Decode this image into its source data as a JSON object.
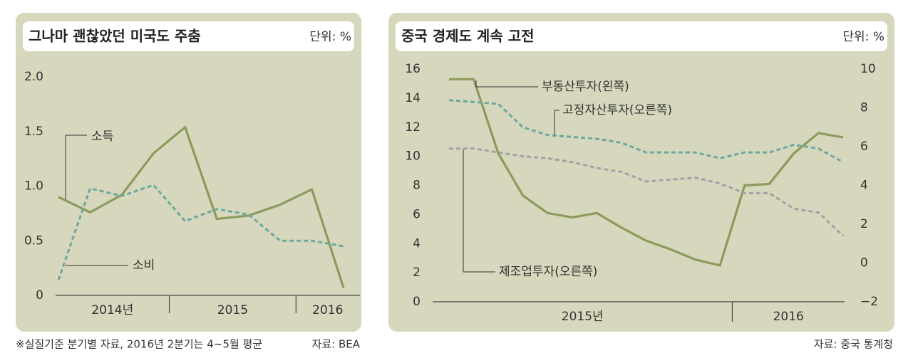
{
  "chart_data": [
    {
      "type": "line",
      "title": "그나마 괜찮았던 미국도 주춤",
      "unit": "단위: %",
      "categories": [
        null,
        null,
        null,
        null,
        null,
        null,
        null,
        null,
        null,
        null
      ],
      "x_groups": [
        {
          "label": "2014년",
          "count": 4
        },
        {
          "label": "2015",
          "count": 4
        },
        {
          "label": "2016",
          "count": 2
        }
      ],
      "ylim": [
        0,
        2
      ],
      "yticks": [
        0,
        0.5,
        {
          "value": 1,
          "label": "1.0"
        },
        1.5,
        {
          "value": 2,
          "label": "2.0"
        }
      ],
      "grid": false,
      "series": [
        {
          "name": "소득",
          "color": "#8c9a5c",
          "line_style": "solid",
          "values": [
            0.9,
            0.76,
            0.92,
            1.3,
            1.54,
            0.7,
            0.73,
            0.83,
            0.97,
            0.07
          ]
        },
        {
          "name": "소비",
          "color": "#6aa9a0",
          "line_style": "dashed",
          "values": [
            0.14,
            0.98,
            0.91,
            1.01,
            0.68,
            0.79,
            0.74,
            0.5,
            0.5,
            0.45
          ]
        }
      ],
      "note": "※실질기준 분기별 자료, 2016년 2분기는 4~5월 평균",
      "source": "자료: BEA"
    },
    {
      "type": "line",
      "title": "중국 경제도 계속 고전",
      "unit": "단위: %",
      "categories": [
        null,
        null,
        null,
        null,
        null,
        null,
        null,
        null,
        null,
        null,
        null,
        null,
        null,
        null,
        null,
        null,
        null
      ],
      "x_groups": [
        {
          "label": "2015년",
          "count": 12
        },
        {
          "label": "2016",
          "count": 5
        }
      ],
      "ylim": [
        0,
        16
      ],
      "yticks": [
        0,
        2,
        4,
        6,
        8,
        10,
        12,
        14,
        16
      ],
      "y2lim": [
        -2,
        10
      ],
      "y2ticks": [
        {
          "value": -2,
          "label": "−2"
        },
        0,
        2,
        4,
        6,
        8,
        10
      ],
      "grid": false,
      "series": [
        {
          "name": "부동산투자(왼쪽)",
          "color": "#8c9a5c",
          "line_style": "solid",
          "values": [
            15.3,
            15.3,
            10.2,
            7.3,
            6.1,
            5.8,
            6.1,
            5.1,
            4.2,
            3.6,
            2.9,
            2.5,
            8.0,
            8.1,
            10.2,
            11.6,
            11.3
          ]
        },
        {
          "name": "고정자산투자(오른쪽)",
          "color": "#6aa9a0",
          "line_style": "dashed",
          "axis": "y2",
          "values": [
            8.4,
            8.3,
            8.2,
            7.0,
            6.6,
            6.5,
            6.4,
            6.2,
            5.7,
            5.7,
            5.7,
            5.4,
            5.7,
            5.7,
            6.1,
            5.9,
            5.2
          ]
        },
        {
          "name": "제조업투자(오른쪽)",
          "color": "#a3a1a8",
          "line_style": "dashed",
          "axis": "y2",
          "values": [
            5.9,
            5.9,
            5.7,
            5.5,
            5.4,
            5.2,
            4.9,
            4.7,
            4.2,
            4.3,
            4.4,
            4.1,
            3.6,
            3.6,
            2.8,
            2.6,
            1.4
          ]
        }
      ],
      "source": "자료: 중국 통계청"
    }
  ]
}
